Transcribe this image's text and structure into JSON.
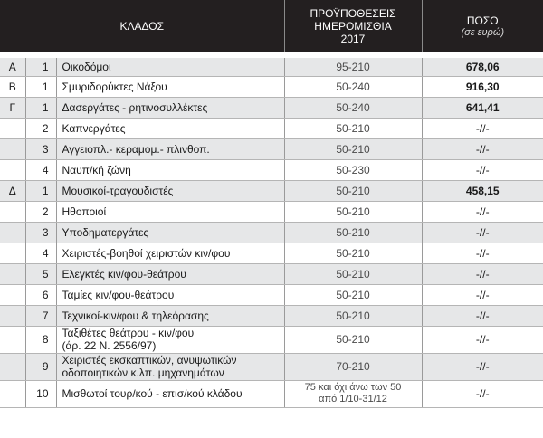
{
  "header": {
    "col_branch": "ΚΛΑΔΟΣ",
    "col_prereq_line1": "ΠΡΟΫΠΟΘΕΣΕΙΣ",
    "col_prereq_line2": "ΗΜΕΡΟΜΙΣΘΙΑ",
    "col_prereq_line3": "2017",
    "col_amount": "ΠΟΣΟ",
    "col_amount_sub": "(σε ευρώ)"
  },
  "rows": [
    {
      "cat": "Α",
      "num": "1",
      "name": "Οικοδόμοι",
      "req": "95-210",
      "amount": "678,06",
      "bold": true
    },
    {
      "cat": "Β",
      "num": "1",
      "name": "Σμυριδορύκτες Νάξου",
      "req": "50-240",
      "amount": "916,30",
      "bold": true
    },
    {
      "cat": "Γ",
      "num": "1",
      "name": "Δασεργάτες - ρητινοσυλλέκτες",
      "req": "50-240",
      "amount": "641,41",
      "bold": true
    },
    {
      "cat": "",
      "num": "2",
      "name": "Καπνεργάτες",
      "req": "50-210",
      "amount": "-//-",
      "bold": false
    },
    {
      "cat": "",
      "num": "3",
      "name": "Αγγειοπλ.- κεραμομ.- πλινθοπ.",
      "req": "50-210",
      "amount": "-//-",
      "bold": false
    },
    {
      "cat": "",
      "num": "4",
      "name": "Ναυπ/κή ζώνη",
      "req": "50-230",
      "amount": "-//-",
      "bold": false
    },
    {
      "cat": "Δ",
      "num": "1",
      "name": "Μουσικοί-τραγουδιστές",
      "req": "50-210",
      "amount": "458,15",
      "bold": true
    },
    {
      "cat": "",
      "num": "2",
      "name": "Ηθοποιοί",
      "req": "50-210",
      "amount": "-//-",
      "bold": false
    },
    {
      "cat": "",
      "num": "3",
      "name": "Υποδηματεργάτες",
      "req": "50-210",
      "amount": "-//-",
      "bold": false
    },
    {
      "cat": "",
      "num": "4",
      "name": "Χειριστές-βοηθοί χειριστών κιν/φου",
      "req": "50-210",
      "amount": "-//-",
      "bold": false
    },
    {
      "cat": "",
      "num": "5",
      "name": "Ελεγκτές κιν/φου-θεάτρου",
      "req": "50-210",
      "amount": "-//-",
      "bold": false
    },
    {
      "cat": "",
      "num": "6",
      "name": "Ταμίες κιν/φου-θεάτρου",
      "req": "50-210",
      "amount": "-//-",
      "bold": false
    },
    {
      "cat": "",
      "num": "7",
      "name": "Τεχνικοί-κιν/φου & τηλεόρασης",
      "req": "50-210",
      "amount": "-//-",
      "bold": false
    },
    {
      "cat": "",
      "num": "8",
      "name": "Ταξιθέτες θεάτρου - κιν/φου",
      "name2": "(άρ. 22 Ν. 2556/97)",
      "req": "50-210",
      "amount": "-//-",
      "bold": false
    },
    {
      "cat": "",
      "num": "9",
      "name": "Χειριστές εκσκαπτικών, ανυψωτικών",
      "name2": "οδοποιητικών κ.λπ. μηχανημάτων",
      "req": "70-210",
      "amount": "-//-",
      "bold": false
    },
    {
      "cat": "",
      "num": "10",
      "name": "Μισθωτοί τουρ/κού - επισ/κού κλάδου",
      "req": "75 και όχι άνω των 50",
      "req2": "από 1/10-31/12",
      "amount": "-//-",
      "bold": false
    }
  ]
}
